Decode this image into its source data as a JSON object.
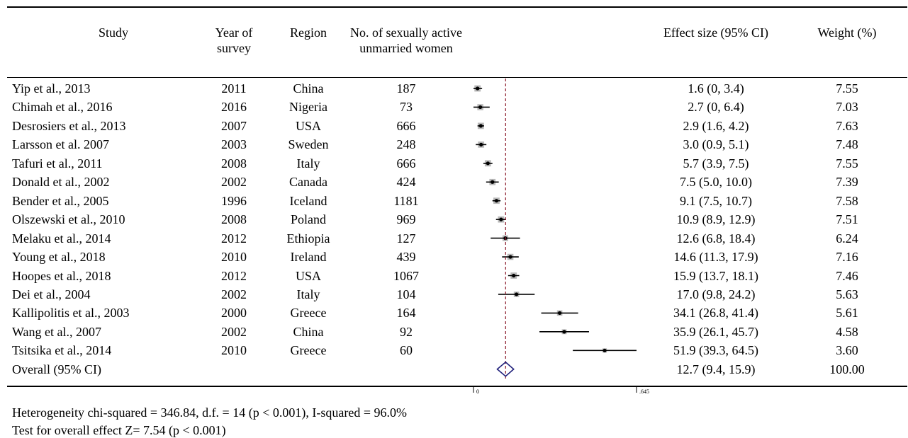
{
  "headers": {
    "study": "Study",
    "year": "Year of survey",
    "region": "Region",
    "n": "No. of sexually active unmarried women",
    "es": "Effect size (95% CI)",
    "weight": "Weight (%)"
  },
  "footnotes": {
    "heterogeneity": "Heterogeneity chi-squared = 346.84, d.f. = 14 (p < 0.001), I-squared = 96.0%",
    "overall_test": "Test for overall effect Z= 7.54 (p < 0.001)"
  },
  "chart_data": {
    "type": "forest",
    "xlim": [
      0,
      64.5
    ],
    "tick_labels": [
      "0",
      ".645"
    ],
    "reference_line": 12.7,
    "studies": [
      {
        "study": "Yip et al., 2013",
        "year": "2011",
        "region": "China",
        "n": "187",
        "es": 1.6,
        "lo": 0,
        "hi": 3.4,
        "es_text": "1.6 (0, 3.4)",
        "weight": "7.55"
      },
      {
        "study": "Chimah et al., 2016",
        "year": "2016",
        "region": "Nigeria",
        "n": "73",
        "es": 2.7,
        "lo": 0,
        "hi": 6.4,
        "es_text": "2.7 (0, 6.4)",
        "weight": "7.03"
      },
      {
        "study": "Desrosiers et al., 2013",
        "year": "2007",
        "region": "USA",
        "n": "666",
        "es": 2.9,
        "lo": 1.6,
        "hi": 4.2,
        "es_text": "2.9 (1.6, 4.2)",
        "weight": "7.63"
      },
      {
        "study": "Larsson et al. 2007",
        "year": "2003",
        "region": "Sweden",
        "n": "248",
        "es": 3.0,
        "lo": 0.9,
        "hi": 5.1,
        "es_text": "3.0 (0.9, 5.1)",
        "weight": "7.48"
      },
      {
        "study": "Tafuri et al., 2011",
        "year": "2008",
        "region": "Italy",
        "n": "666",
        "es": 5.7,
        "lo": 3.9,
        "hi": 7.5,
        "es_text": "5.7 (3.9, 7.5)",
        "weight": "7.55"
      },
      {
        "study": "Donald et al., 2002",
        "year": "2002",
        "region": "Canada",
        "n": "424",
        "es": 7.5,
        "lo": 5.0,
        "hi": 10.0,
        "es_text": "7.5 (5.0, 10.0)",
        "weight": "7.39"
      },
      {
        "study": "Bender et al., 2005",
        "year": "1996",
        "region": "Iceland",
        "n": "1181",
        "es": 9.1,
        "lo": 7.5,
        "hi": 10.7,
        "es_text": "9.1 (7.5, 10.7)",
        "weight": "7.58"
      },
      {
        "study": "Olszewski et al., 2010",
        "year": "2008",
        "region": "Poland",
        "n": "969",
        "es": 10.9,
        "lo": 8.9,
        "hi": 12.9,
        "es_text": "10.9 (8.9, 12.9)",
        "weight": "7.51"
      },
      {
        "study": "Melaku et al., 2014",
        "year": "2012",
        "region": "Ethiopia",
        "n": "127",
        "es": 12.6,
        "lo": 6.8,
        "hi": 18.4,
        "es_text": "12.6 (6.8, 18.4)",
        "weight": "6.24"
      },
      {
        "study": "Young et al., 2018",
        "year": "2010",
        "region": "Ireland",
        "n": "439",
        "es": 14.6,
        "lo": 11.3,
        "hi": 17.9,
        "es_text": "14.6 (11.3, 17.9)",
        "weight": "7.16"
      },
      {
        "study": "Hoopes et al., 2018",
        "year": "2012",
        "region": "USA",
        "n": "1067",
        "es": 15.9,
        "lo": 13.7,
        "hi": 18.1,
        "es_text": "15.9 (13.7, 18.1)",
        "weight": "7.46"
      },
      {
        "study": "Dei et al., 2004",
        "year": "2002",
        "region": "Italy",
        "n": "104",
        "es": 17.0,
        "lo": 9.8,
        "hi": 24.2,
        "es_text": "17.0 (9.8, 24.2)",
        "weight": "5.63"
      },
      {
        "study": "Kallipolitis et al., 2003",
        "year": "2000",
        "region": "Greece",
        "n": "164",
        "es": 34.1,
        "lo": 26.8,
        "hi": 41.4,
        "es_text": "34.1 (26.8, 41.4)",
        "weight": "5.61"
      },
      {
        "study": "Wang et al., 2007",
        "year": "2002",
        "region": "China",
        "n": "92",
        "es": 35.9,
        "lo": 26.1,
        "hi": 45.7,
        "es_text": "35.9 (26.1, 45.7)",
        "weight": "4.58"
      },
      {
        "study": "Tsitsika et al., 2014",
        "year": "2010",
        "region": "Greece",
        "n": "60",
        "es": 51.9,
        "lo": 39.3,
        "hi": 64.5,
        "es_text": "51.9 (39.3, 64.5)",
        "weight": "3.60"
      }
    ],
    "overall": {
      "label": "Overall (95% CI)",
      "es": 12.7,
      "lo": 9.4,
      "hi": 15.9,
      "es_text": "12.7 (9.4, 15.9)",
      "weight": "100.00"
    },
    "colors": {
      "marker": "#000000",
      "weight_box": "#b8b8b8",
      "reference_line": "#8b1a2b",
      "diamond": "#1f1f7a"
    }
  }
}
